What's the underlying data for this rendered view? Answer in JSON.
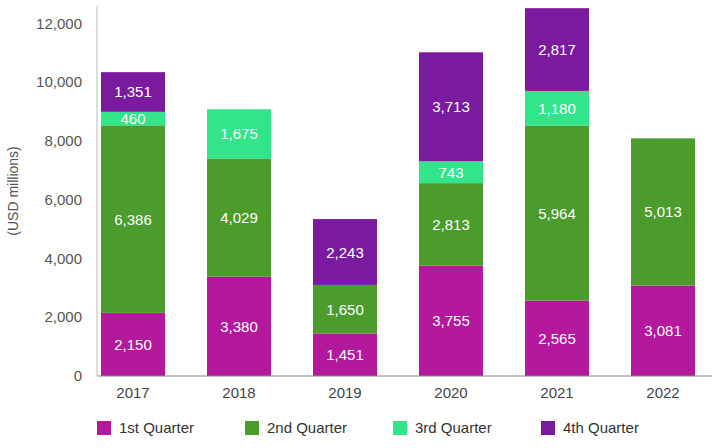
{
  "chart_data": {
    "type": "bar",
    "stacked": true,
    "data_labels": true,
    "grid": false,
    "legend": "bottom",
    "y_label": "(USD millions)",
    "categories": [
      "2017",
      "2018",
      "2019",
      "2020",
      "2021",
      "2022"
    ],
    "series": [
      {
        "name": "1st Quarter",
        "color": "#b4189c",
        "values": [
          2150,
          3380,
          1451,
          3755,
          2565,
          3081
        ],
        "value_labels": [
          "2,150",
          "3,380",
          "1,451",
          "3,755",
          "2,565",
          "3,081"
        ]
      },
      {
        "name": "2nd Quarter",
        "color": "#4b9c2c",
        "values": [
          6386,
          4029,
          1650,
          2813,
          5964,
          5013
        ],
        "value_labels": [
          "6,386",
          "4,029",
          "1,650",
          "2,813",
          "5,964",
          "5,013"
        ]
      },
      {
        "name": "3rd Quarter",
        "color": "#33e58a",
        "values": [
          460,
          1675,
          null,
          743,
          1180,
          null
        ],
        "value_labels": [
          "460",
          "1,675",
          null,
          "743",
          "1,180",
          null
        ]
      },
      {
        "name": "4th Quarter",
        "color": "#7a1a9e",
        "values": [
          1351,
          null,
          2243,
          3713,
          2817,
          null
        ],
        "value_labels": [
          "1,351",
          null,
          "2,243",
          "3,713",
          "2,817",
          null
        ]
      }
    ],
    "ylim": [
      0,
      12600
    ],
    "yticks": [
      0,
      {
        "value": 2000,
        "label": "2,000"
      },
      {
        "value": 4000,
        "label": "4,000"
      },
      {
        "value": 6000,
        "label": "6,000"
      },
      {
        "value": 8000,
        "label": "8,000"
      },
      {
        "value": 10000,
        "label": "10,000"
      },
      {
        "value": 12000,
        "label": "12,000"
      }
    ]
  }
}
